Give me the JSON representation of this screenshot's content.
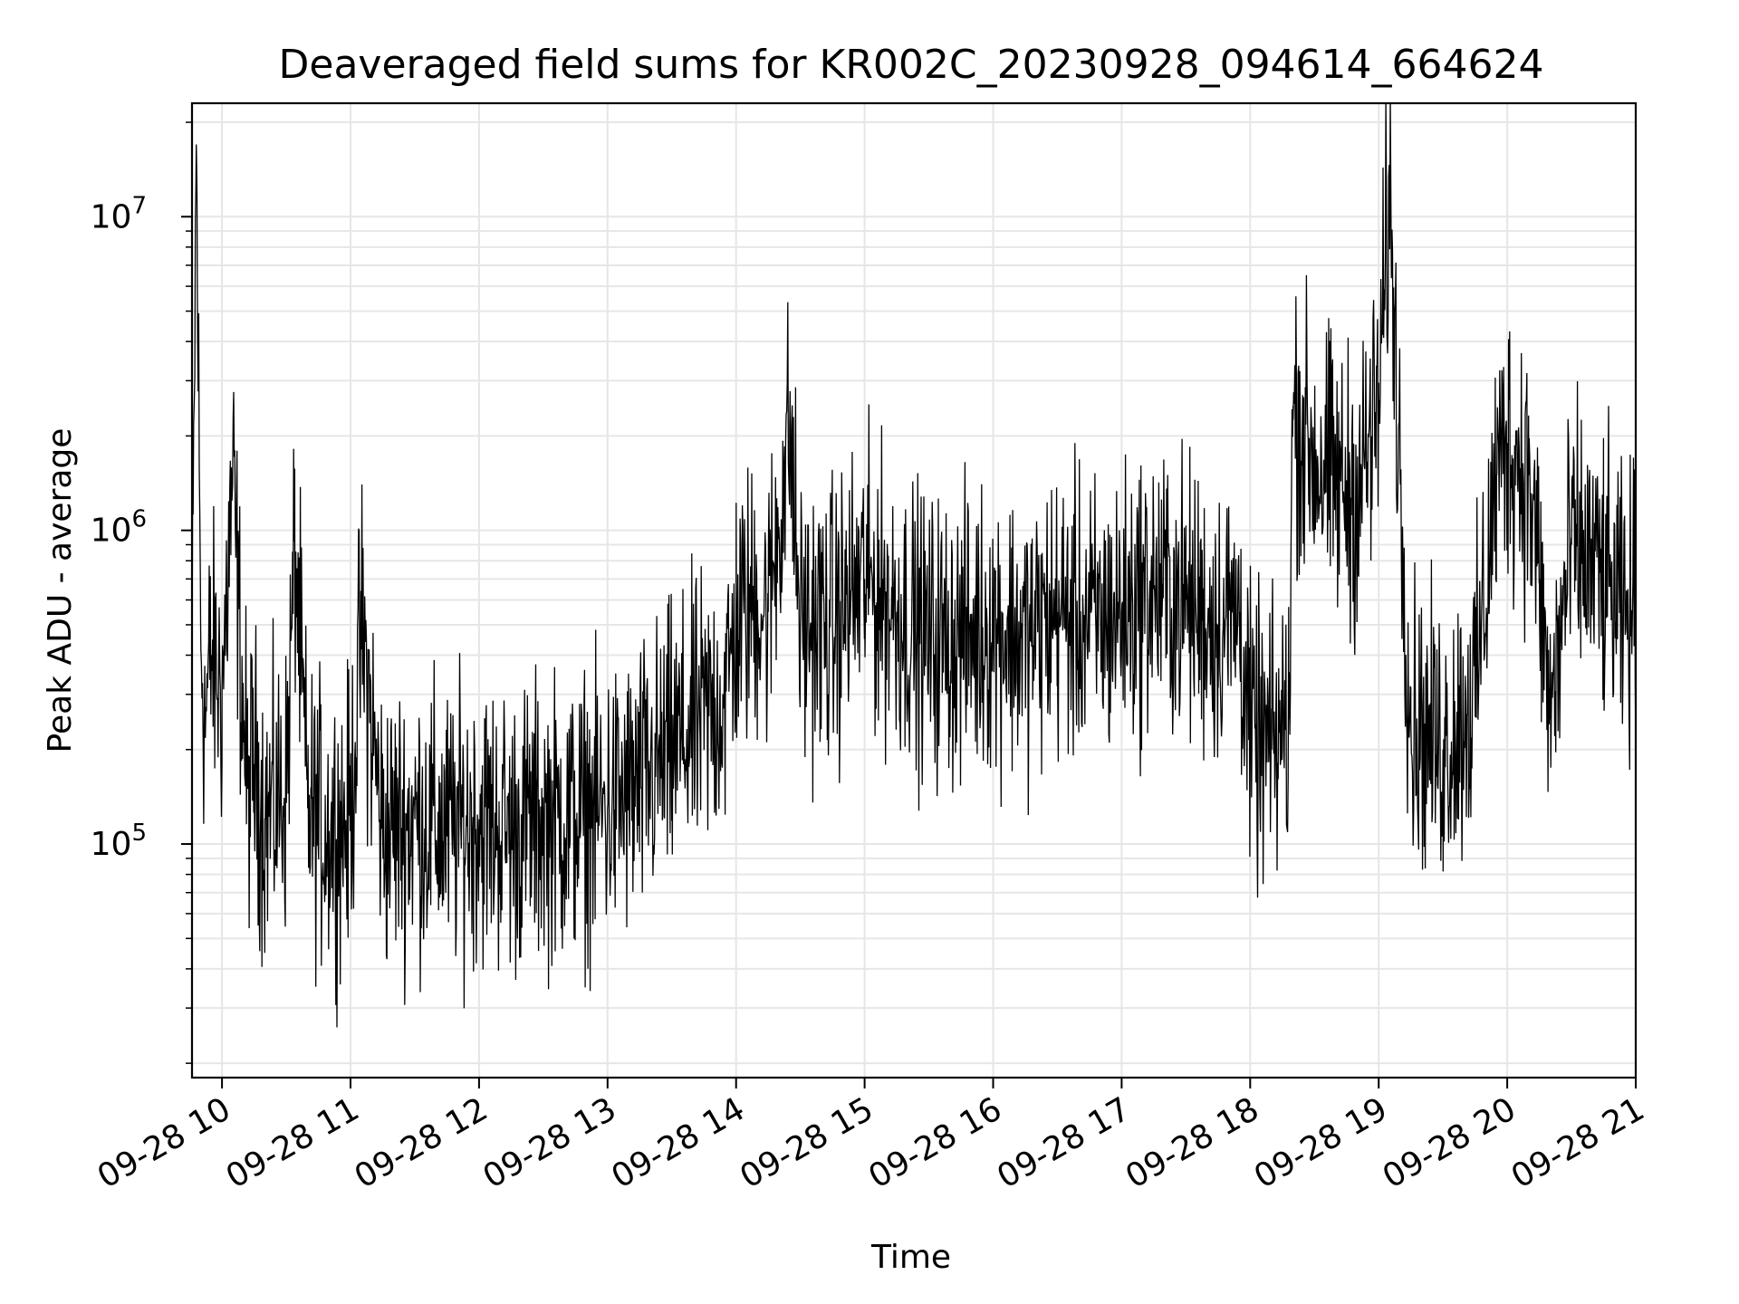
{
  "chart_data": {
    "type": "line",
    "title": "Deaveraged field sums for KR002C_20230928_094614_664624",
    "xlabel": "Time",
    "ylabel": "Peak ADU - average",
    "x_scale": "time",
    "y_scale": "log",
    "xlim": [
      "2023-09-28 09:46",
      "2023-09-28 21:00"
    ],
    "ylim": [
      18000,
      23000000
    ],
    "x_ticks": [
      "09-28 10",
      "09-28 11",
      "09-28 12",
      "09-28 13",
      "09-28 14",
      "09-28 15",
      "09-28 16",
      "09-28 17",
      "09-28 18",
      "09-28 19",
      "09-28 20",
      "09-28 21"
    ],
    "y_ticks": [
      {
        "value": 100000,
        "base": "10",
        "exp": "5"
      },
      {
        "value": 1000000,
        "base": "10",
        "exp": "6"
      },
      {
        "value": 10000000,
        "base": "10",
        "exp": "7"
      }
    ],
    "grid": true,
    "line_color": "#000000",
    "series": [
      {
        "x": [
          "2023-09-28 09:46",
          "2023-09-28 09:48",
          "2023-09-28 09:50",
          "2023-09-28 09:52",
          "2023-09-28 09:55",
          "2023-09-28 10:00",
          "2023-09-28 10:05",
          "2023-09-28 10:10",
          "2023-09-28 10:12",
          "2023-09-28 10:15",
          "2023-09-28 10:20",
          "2023-09-28 10:30",
          "2023-09-28 10:34",
          "2023-09-28 10:40",
          "2023-09-28 10:50",
          "2023-09-28 11:00",
          "2023-09-28 11:05",
          "2023-09-28 11:15",
          "2023-09-28 11:30",
          "2023-09-28 11:45",
          "2023-09-28 12:00",
          "2023-09-28 12:15",
          "2023-09-28 12:30",
          "2023-09-28 12:45",
          "2023-09-28 13:00",
          "2023-09-28 13:15",
          "2023-09-28 13:30",
          "2023-09-28 13:45",
          "2023-09-28 13:55",
          "2023-09-28 14:00",
          "2023-09-28 14:10",
          "2023-09-28 14:15",
          "2023-09-28 14:25",
          "2023-09-28 14:30",
          "2023-09-28 14:45",
          "2023-09-28 15:00",
          "2023-09-28 15:15",
          "2023-09-28 15:30",
          "2023-09-28 15:45",
          "2023-09-28 16:00",
          "2023-09-28 16:15",
          "2023-09-28 16:30",
          "2023-09-28 16:45",
          "2023-09-28 17:00",
          "2023-09-28 17:15",
          "2023-09-28 17:30",
          "2023-09-28 17:45",
          "2023-09-28 17:55",
          "2023-09-28 18:00",
          "2023-09-28 18:10",
          "2023-09-28 18:18",
          "2023-09-28 18:20",
          "2023-09-28 18:25",
          "2023-09-28 18:30",
          "2023-09-28 18:40",
          "2023-09-28 18:50",
          "2023-09-28 19:00",
          "2023-09-28 19:05",
          "2023-09-28 19:10",
          "2023-09-28 19:15",
          "2023-09-28 19:30",
          "2023-09-28 19:45",
          "2023-09-28 19:55",
          "2023-09-28 20:00",
          "2023-09-28 20:10",
          "2023-09-28 20:15",
          "2023-09-28 20:20",
          "2023-09-28 20:30",
          "2023-09-28 20:45",
          "2023-09-28 20:55",
          "2023-09-28 21:00"
        ],
        "y": [
          300000,
          17000000,
          500000,
          250000,
          400000,
          300000,
          1500000,
          250000,
          150000,
          180000,
          120000,
          150000,
          900000,
          130000,
          110000,
          120000,
          500000,
          110000,
          120000,
          110000,
          120000,
          110000,
          120000,
          120000,
          130000,
          150000,
          200000,
          250000,
          300000,
          500000,
          600000,
          550000,
          2100000,
          500000,
          500000,
          700000,
          550000,
          450000,
          450000,
          500000,
          450000,
          550000,
          500000,
          550000,
          650000,
          600000,
          500000,
          550000,
          220000,
          200000,
          250000,
          2500000,
          2000000,
          1700000,
          1400000,
          1300000,
          2500000,
          12000000,
          1500000,
          250000,
          200000,
          300000,
          1500000,
          1900000,
          1500000,
          700000,
          250000,
          900000,
          700000,
          500000,
          600000
        ]
      }
    ]
  }
}
